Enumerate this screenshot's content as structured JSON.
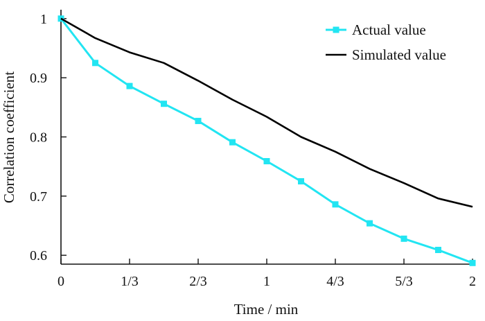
{
  "chart_data": {
    "type": "line",
    "title": "",
    "xlabel": "Time / min",
    "ylabel": "Correlation coefficient",
    "xlim": [
      0,
      2
    ],
    "ylim": [
      0.585,
      1.015
    ],
    "grid": false,
    "legend_position": "top-right",
    "x_ticks": [
      {
        "value": 0,
        "label": "0"
      },
      {
        "value": 0.3333,
        "label": "1/3"
      },
      {
        "value": 0.6667,
        "label": "2/3"
      },
      {
        "value": 1,
        "label": "1"
      },
      {
        "value": 1.3333,
        "label": "4/3"
      },
      {
        "value": 1.6667,
        "label": "5/3"
      },
      {
        "value": 2,
        "label": "2"
      }
    ],
    "y_ticks": [
      {
        "value": 0.6,
        "label": "0.6"
      },
      {
        "value": 0.7,
        "label": "0.7"
      },
      {
        "value": 0.8,
        "label": "0.8"
      },
      {
        "value": 0.9,
        "label": "0.9"
      },
      {
        "value": 1.0,
        "label": "1"
      }
    ],
    "series": [
      {
        "name": "Actual value",
        "color": "#22e5f2",
        "marker": "square",
        "x": [
          0,
          0.1667,
          0.3333,
          0.5,
          0.6667,
          0.8333,
          1.0,
          1.1667,
          1.3333,
          1.5,
          1.6667,
          1.8333,
          2.0
        ],
        "y": [
          1.0,
          0.925,
          0.886,
          0.856,
          0.827,
          0.791,
          0.759,
          0.725,
          0.686,
          0.654,
          0.628,
          0.609,
          0.587
        ]
      },
      {
        "name": "Simulated value",
        "color": "#000000",
        "marker": "none",
        "x": [
          0,
          0.1667,
          0.3333,
          0.5,
          0.6667,
          0.8333,
          1.0,
          1.1667,
          1.3333,
          1.5,
          1.6667,
          1.8333,
          2.0
        ],
        "y": [
          1.0,
          0.967,
          0.943,
          0.925,
          0.895,
          0.863,
          0.834,
          0.8,
          0.775,
          0.746,
          0.722,
          0.696,
          0.682
        ]
      }
    ]
  }
}
